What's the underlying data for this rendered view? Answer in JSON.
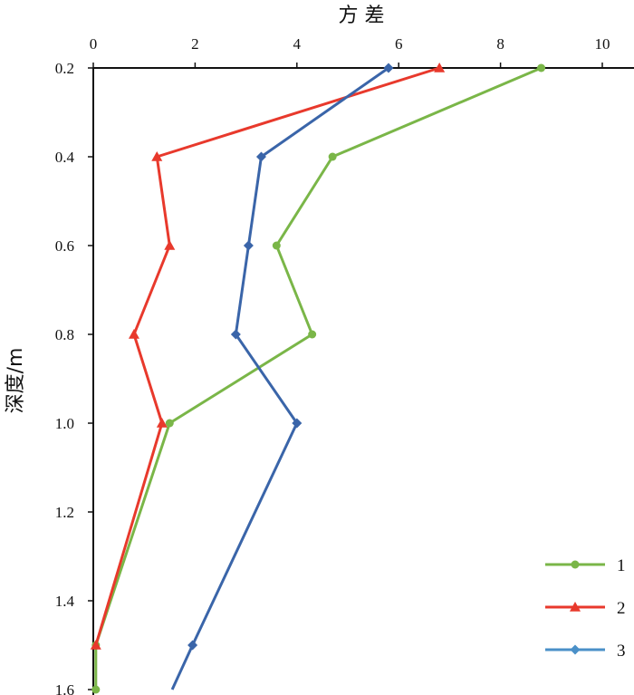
{
  "chart_data": {
    "type": "line",
    "title": "",
    "xlabel": "方 差",
    "ylabel": "深度/m",
    "xlim": [
      0,
      10.5
    ],
    "ylim": [
      0.2,
      1.6
    ],
    "x_ticks": [
      "0",
      "2",
      "4",
      "6",
      "8",
      "10"
    ],
    "x_tick_values": [
      0,
      2,
      4,
      6,
      8,
      10
    ],
    "y_ticks": [
      "0.2",
      "0.4",
      "0.6",
      "0.8",
      "1.0",
      "1.2",
      "1.4",
      "1.6"
    ],
    "y_tick_values": [
      0.2,
      0.4,
      0.6,
      0.8,
      1.0,
      1.2,
      1.4,
      1.6
    ],
    "x_axis_position": "top",
    "y_axis_inverted": true,
    "legend_position": "bottom-right",
    "series": [
      {
        "name": "1",
        "color": "#7ab648",
        "marker": "circle",
        "points": [
          {
            "depth": 0.2,
            "variance": 8.8
          },
          {
            "depth": 0.4,
            "variance": 4.7
          },
          {
            "depth": 0.6,
            "variance": 3.6
          },
          {
            "depth": 0.8,
            "variance": 4.3
          },
          {
            "depth": 1.0,
            "variance": 1.5
          },
          {
            "depth": 1.5,
            "variance": 0.05
          },
          {
            "depth": 1.6,
            "variance": 0.05
          }
        ]
      },
      {
        "name": "2",
        "color": "#e8392c",
        "marker": "triangle",
        "points": [
          {
            "depth": 0.2,
            "variance": 6.8
          },
          {
            "depth": 0.4,
            "variance": 1.25
          },
          {
            "depth": 0.6,
            "variance": 1.5
          },
          {
            "depth": 0.8,
            "variance": 0.8
          },
          {
            "depth": 1.0,
            "variance": 1.35
          },
          {
            "depth": 1.5,
            "variance": 0.05
          }
        ]
      },
      {
        "name": "3",
        "color": "#3a65a9",
        "legend_color": "#4a90c8",
        "marker": "diamond",
        "points": [
          {
            "depth": 0.2,
            "variance": 5.8
          },
          {
            "depth": 0.4,
            "variance": 3.3
          },
          {
            "depth": 0.6,
            "variance": 3.05
          },
          {
            "depth": 0.8,
            "variance": 2.8
          },
          {
            "depth": 1.0,
            "variance": 4.0
          },
          {
            "depth": 1.5,
            "variance": 1.95
          },
          {
            "depth": 1.6,
            "variance": 1.55
          }
        ],
        "marker_count": 6
      }
    ]
  }
}
